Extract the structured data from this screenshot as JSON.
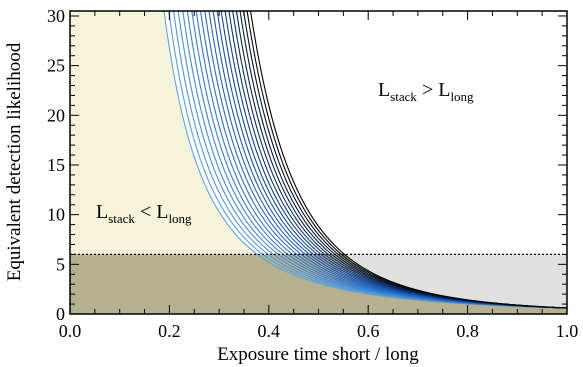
{
  "chart_data": {
    "type": "line",
    "title": "",
    "xlabel": "Exposure time short / long",
    "ylabel": "Equivalent detection likelihood",
    "xlim": [
      0.0,
      1.0
    ],
    "ylim": [
      0,
      30.5
    ],
    "x_ticks": [
      "0.0",
      "0.2",
      "0.4",
      "0.6",
      "0.8",
      "1.0"
    ],
    "y_ticks": [
      "0",
      "5",
      "10",
      "15",
      "20",
      "25",
      "30"
    ],
    "threshold": 6,
    "regions": [
      {
        "name": "L_stack < L_long",
        "color": "#f5f3da"
      },
      {
        "name": "below-threshold",
        "color": "#b5b08f"
      },
      {
        "name": "L_stack > L_long above threshold",
        "color": "#e0e0e0"
      }
    ],
    "annotations": [
      {
        "base": "L",
        "sub": "stack",
        "op": " > ",
        "base2": "L",
        "sub2": "long"
      },
      {
        "base": "L",
        "sub": "stack",
        "op": " < ",
        "base2": "L",
        "sub2": "long"
      }
    ],
    "curve_family": {
      "count": 22,
      "form": "y = 0.6 * x^(-b)",
      "b_range": [
        2.36,
        3.88
      ],
      "colors": {
        "lightest": "#5aa6e8",
        "mid": "#1a55b5",
        "darkest": "#000000"
      }
    }
  }
}
